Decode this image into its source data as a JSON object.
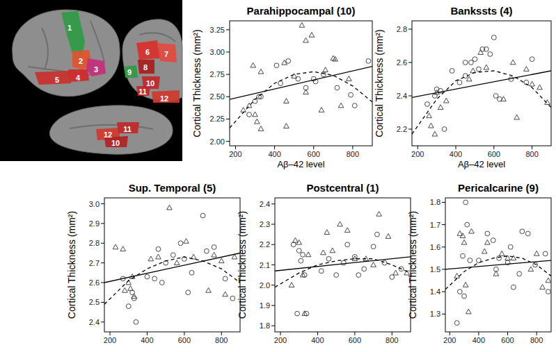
{
  "brain_figure": {
    "lateral_regions": [
      {
        "label": "1",
        "color": "#2f9a46"
      },
      {
        "label": "2",
        "color": "#e0542e"
      },
      {
        "label": "3",
        "color": "#c42f7d"
      },
      {
        "label": "4",
        "color": "#d0282a"
      },
      {
        "label": "5",
        "color": "#c8302c"
      }
    ],
    "medial_regions": [
      {
        "label": "6",
        "color": "#d8302c"
      },
      {
        "label": "7",
        "color": "#e24a40"
      },
      {
        "label": "8",
        "color": "#a81c1c"
      },
      {
        "label": "9",
        "color": "#2f9a46"
      },
      {
        "label": "10",
        "color": "#c0282a"
      },
      {
        "label": "11",
        "color": "#c0282a"
      },
      {
        "label": "12",
        "color": "#d03a2e"
      }
    ],
    "ventral_regions": [
      {
        "label": "12",
        "color": "#d03a2e"
      },
      {
        "label": "11",
        "color": "#c0282a"
      },
      {
        "label": "10",
        "color": "#b02222"
      }
    ]
  },
  "chart_data": [
    {
      "type": "scatter",
      "title": "Parahippocampal (10)",
      "x_label": "Aβ–42 level",
      "y_label": "Cortical Thickness (mm²)",
      "xlim": [
        170,
        900
      ],
      "xticks": [
        200,
        400,
        600,
        800
      ],
      "ylim": [
        1.95,
        3.35
      ],
      "yticks": [
        {
          "value": 2.0,
          "label": "2.00"
        },
        2.25,
        {
          "value": 2.5,
          "label": "2.50"
        },
        2.75,
        {
          "value": 3.0,
          "label": "3.00"
        },
        3.25
      ],
      "series": [
        {
          "type": "scatter",
          "marker": "circle",
          "x": [
            270,
            300,
            320,
            330,
            410,
            430,
            470,
            520,
            560,
            600,
            610,
            650,
            720,
            790,
            810,
            880
          ],
          "values": [
            2.3,
            2.45,
            2.5,
            2.5,
            2.85,
            2.65,
            2.9,
            2.7,
            2.6,
            2.7,
            2.67,
            2.75,
            2.6,
            2.52,
            2.4,
            2.9
          ]
        },
        {
          "type": "scatter",
          "marker": "triangle",
          "x": [
            240,
            270,
            290,
            300,
            310,
            330,
            330,
            450,
            460,
            460,
            500,
            540,
            560,
            560,
            590,
            640,
            660,
            700,
            710,
            740,
            780
          ],
          "values": [
            2.35,
            2.4,
            2.85,
            2.3,
            2.22,
            2.14,
            2.78,
            2.88,
            2.17,
            2.45,
            2.73,
            3.3,
            3.13,
            2.55,
            3.19,
            2.35,
            2.8,
            2.93,
            2.92,
            2.4,
            2.7
          ]
        },
        {
          "type": "line",
          "line_style": "solid",
          "x": [
            170,
            900
          ],
          "values": [
            2.47,
            2.84
          ]
        },
        {
          "type": "line",
          "line_style": "dashed",
          "x": [
            170,
            300,
            400,
            500,
            600,
            700,
            800,
            900
          ],
          "values": [
            2.15,
            2.47,
            2.65,
            2.75,
            2.78,
            2.74,
            2.62,
            2.44
          ]
        }
      ]
    },
    {
      "type": "scatter",
      "title": "Bankssts (4)",
      "x_label": "Aβ–42 level",
      "y_label": "Cortical Thickness (mm²)",
      "xlim": [
        170,
        900
      ],
      "xticks": [
        200,
        400,
        600,
        800
      ],
      "ylim": [
        2.1,
        2.85
      ],
      "yticks": [
        2.2,
        2.4,
        2.6,
        2.8
      ],
      "series": [
        {
          "type": "scatter",
          "marker": "circle",
          "x": [
            250,
            290,
            300,
            320,
            340,
            380,
            420,
            450,
            450,
            480,
            500,
            520,
            540,
            560,
            580,
            600,
            610,
            630,
            690,
            770,
            800
          ],
          "values": [
            2.35,
            2.4,
            2.44,
            2.43,
            2.2,
            2.55,
            2.48,
            2.52,
            2.6,
            2.6,
            2.62,
            2.56,
            2.68,
            2.68,
            2.65,
            2.75,
            2.4,
            2.38,
            2.5,
            2.48,
            2.62
          ]
        },
        {
          "type": "scatter",
          "marker": "triangle",
          "x": [
            260,
            270,
            290,
            300,
            320,
            350,
            470,
            490,
            530,
            560,
            650,
            700,
            720,
            770,
            800,
            840,
            880
          ],
          "values": [
            2.28,
            2.22,
            2.17,
            2.42,
            2.33,
            2.37,
            2.5,
            2.55,
            2.66,
            2.57,
            2.38,
            2.6,
            2.27,
            2.56,
            2.47,
            2.45,
            2.36
          ]
        },
        {
          "type": "line",
          "line_style": "solid",
          "x": [
            170,
            900
          ],
          "values": [
            2.39,
            2.55
          ]
        },
        {
          "type": "line",
          "line_style": "dashed",
          "x": [
            170,
            300,
            400,
            500,
            600,
            700,
            800,
            900
          ],
          "values": [
            2.17,
            2.38,
            2.49,
            2.54,
            2.55,
            2.52,
            2.45,
            2.33
          ]
        }
      ]
    },
    {
      "type": "scatter",
      "title": "Sup. Temporal (5)",
      "y_label": "Cortical Thickness (mm²)",
      "xlim": [
        170,
        900
      ],
      "xticks": [
        200,
        400,
        600,
        800
      ],
      "ylim": [
        2.35,
        3.03
      ],
      "yticks": [
        2.4,
        2.5,
        2.6,
        2.7,
        2.8,
        2.9,
        {
          "value": 3.0,
          "label": "3.0"
        }
      ],
      "series": [
        {
          "type": "scatter",
          "marker": "circle",
          "x": [
            270,
            300,
            320,
            330,
            340,
            400,
            440,
            460,
            480,
            500,
            540,
            580,
            600,
            620,
            640,
            700,
            720,
            760,
            820,
            860
          ],
          "values": [
            2.62,
            2.48,
            2.55,
            2.52,
            2.4,
            2.63,
            2.62,
            2.77,
            2.6,
            2.7,
            2.74,
            2.8,
            2.72,
            2.55,
            2.65,
            2.94,
            2.76,
            2.78,
            2.62,
            2.52
          ]
        },
        {
          "type": "scatter",
          "marker": "triangle",
          "x": [
            230,
            270,
            280,
            300,
            310,
            320,
            330,
            420,
            460,
            520,
            560,
            610,
            650,
            730,
            760,
            800,
            820,
            870
          ],
          "values": [
            2.78,
            2.77,
            2.56,
            2.6,
            2.57,
            2.63,
            2.53,
            2.72,
            2.73,
            2.98,
            2.7,
            2.81,
            2.73,
            2.56,
            2.74,
            2.71,
            2.54,
            2.73
          ]
        },
        {
          "type": "line",
          "line_style": "solid",
          "x": [
            170,
            900
          ],
          "values": [
            2.6,
            2.75
          ]
        },
        {
          "type": "line",
          "line_style": "dashed",
          "x": [
            170,
            300,
            400,
            500,
            600,
            700,
            800,
            900
          ],
          "values": [
            2.49,
            2.61,
            2.67,
            2.71,
            2.73,
            2.71,
            2.67,
            2.6
          ]
        }
      ]
    },
    {
      "type": "scatter",
      "title": "Postcentral (1)",
      "y_label": "Cortical Thickness (mm²)",
      "xlim": [
        170,
        900
      ],
      "xticks": [
        200,
        400,
        600,
        800
      ],
      "ylim": [
        1.77,
        2.43
      ],
      "yticks": [
        1.8,
        1.9,
        {
          "value": 2.0,
          "label": "2.0"
        },
        2.1,
        2.2,
        2.3,
        2.4
      ],
      "series": [
        {
          "type": "scatter",
          "marker": "circle",
          "x": [
            270,
            290,
            300,
            310,
            320,
            330,
            340,
            420,
            460,
            500,
            540,
            560,
            600,
            620,
            650,
            700,
            720,
            760,
            800,
            850
          ],
          "values": [
            2.2,
            1.86,
            2.17,
            2.12,
            2.15,
            2.05,
            1.86,
            2.07,
            2.13,
            2.05,
            2.11,
            2.2,
            2.14,
            2.05,
            2.08,
            2.19,
            2.25,
            2.11,
            2.04,
            2.08
          ]
        },
        {
          "type": "scatter",
          "marker": "triangle",
          "x": [
            260,
            280,
            300,
            320,
            330,
            350,
            430,
            450,
            480,
            520,
            560,
            600,
            660,
            700,
            730,
            780,
            820,
            880
          ],
          "values": [
            2.0,
            2.22,
            2.21,
            2.05,
            1.86,
            2.15,
            2.16,
            2.26,
            2.17,
            2.3,
            2.27,
            2.13,
            2.13,
            2.1,
            2.35,
            2.24,
            2.06,
            2.06
          ]
        },
        {
          "type": "line",
          "line_style": "solid",
          "x": [
            170,
            900
          ],
          "values": [
            2.07,
            2.14
          ]
        },
        {
          "type": "line",
          "line_style": "dashed",
          "x": [
            170,
            300,
            400,
            500,
            600,
            700,
            800,
            900
          ],
          "values": [
            1.99,
            2.06,
            2.1,
            2.12,
            2.13,
            2.13,
            2.1,
            2.06
          ]
        }
      ]
    },
    {
      "type": "scatter",
      "title": "Pericalcarine (9)",
      "y_label": "Cortical Thickness (mm²)",
      "xlim": [
        170,
        900
      ],
      "xticks": [
        200,
        400,
        600,
        800
      ],
      "ylim": [
        1.22,
        1.82
      ],
      "yticks": [
        1.3,
        1.4,
        1.5,
        1.6,
        1.7,
        1.8
      ],
      "series": [
        {
          "type": "scatter",
          "marker": "circle",
          "x": [
            250,
            270,
            290,
            300,
            310,
            320,
            340,
            400,
            460,
            500,
            520,
            540,
            600,
            620,
            640,
            680,
            700,
            740,
            790,
            860,
            880
          ],
          "values": [
            1.26,
            1.4,
            1.56,
            1.38,
            1.8,
            1.7,
            1.54,
            1.54,
            1.66,
            1.63,
            1.5,
            1.55,
            1.53,
            1.6,
            1.42,
            1.48,
            1.67,
            1.66,
            1.52,
            1.57,
            1.4
          ]
        },
        {
          "type": "scatter",
          "marker": "triangle",
          "x": [
            250,
            270,
            290,
            300,
            310,
            330,
            350,
            440,
            460,
            520,
            560,
            600,
            640,
            760,
            800,
            840,
            880
          ],
          "values": [
            1.47,
            1.66,
            1.65,
            1.62,
            1.43,
            1.31,
            1.67,
            1.58,
            1.62,
            1.48,
            1.57,
            1.55,
            1.55,
            1.5,
            1.57,
            1.42,
            1.45
          ]
        },
        {
          "type": "line",
          "line_style": "solid",
          "x": [
            170,
            900
          ],
          "values": [
            1.5,
            1.54
          ]
        },
        {
          "type": "line",
          "line_style": "dashed",
          "x": [
            170,
            300,
            400,
            500,
            600,
            700,
            800,
            900
          ],
          "values": [
            1.41,
            1.49,
            1.53,
            1.55,
            1.56,
            1.55,
            1.52,
            1.47
          ]
        }
      ]
    }
  ]
}
